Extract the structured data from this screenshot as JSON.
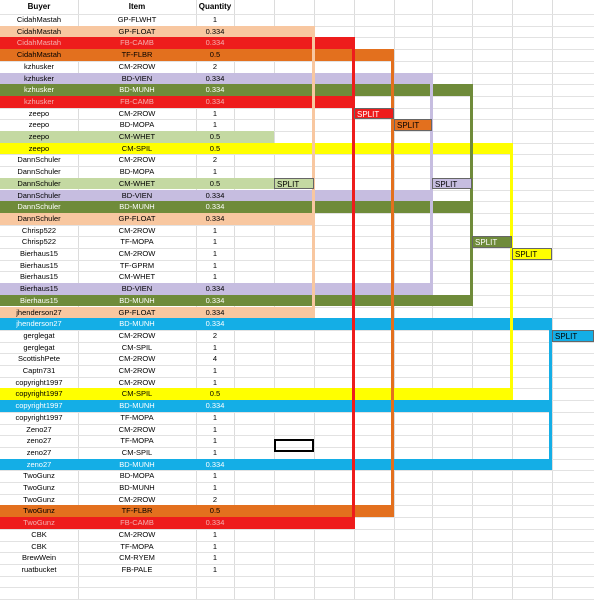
{
  "columns": {
    "buyer": "Buyer",
    "item": "Item",
    "quantity": "Quantity"
  },
  "colors": {
    "peach": "#f8c7a0",
    "red": "#ee1c1c",
    "orange": "#e3701e",
    "lavender": "#c6bde0",
    "olive": "#6f8b3a",
    "lightgreen": "#c4d9a2",
    "yellow": "#ffff00",
    "blue": "#14aee6"
  },
  "rows": [
    {
      "buyer": "CidahMastah",
      "item": "GP-FLWHT",
      "qty": "1",
      "color": ""
    },
    {
      "buyer": "CidahMastah",
      "item": "GP-FLOAT",
      "qty": "0.334",
      "color": "peach"
    },
    {
      "buyer": "CidahMastah",
      "item": "FB-CAMB",
      "qty": "0.334",
      "color": "red"
    },
    {
      "buyer": "CidahMastah",
      "item": "TF-FLBR",
      "qty": "0.5",
      "color": "orange"
    },
    {
      "buyer": "kzhusker",
      "item": "CM-2ROW",
      "qty": "2",
      "color": ""
    },
    {
      "buyer": "kzhusker",
      "item": "BD-VIEN",
      "qty": "0.334",
      "color": "lavender"
    },
    {
      "buyer": "kzhusker",
      "item": "BD-MUNH",
      "qty": "0.334",
      "color": "olive"
    },
    {
      "buyer": "kzhusker",
      "item": "FB-CAMB",
      "qty": "0.334",
      "color": "red"
    },
    {
      "buyer": "zeepo",
      "item": "CM-2ROW",
      "qty": "1",
      "color": ""
    },
    {
      "buyer": "zeepo",
      "item": "BD-MOPA",
      "qty": "1",
      "color": ""
    },
    {
      "buyer": "zeepo",
      "item": "CM-WHET",
      "qty": "0.5",
      "color": "lightgreen"
    },
    {
      "buyer": "zeepo",
      "item": "CM-SPIL",
      "qty": "0.5",
      "color": "yellow"
    },
    {
      "buyer": "DannSchuler",
      "item": "CM-2ROW",
      "qty": "2",
      "color": ""
    },
    {
      "buyer": "DannSchuler",
      "item": "BD-MOPA",
      "qty": "1",
      "color": ""
    },
    {
      "buyer": "DannSchuler",
      "item": "CM-WHET",
      "qty": "0.5",
      "color": "lightgreen"
    },
    {
      "buyer": "DannSchuler",
      "item": "BD-VIEN",
      "qty": "0.334",
      "color": "lavender"
    },
    {
      "buyer": "DannSchuler",
      "item": "BD-MUNH",
      "qty": "0.334",
      "color": "olive"
    },
    {
      "buyer": "DannSchuler",
      "item": "GP-FLOAT",
      "qty": "0.334",
      "color": "peach"
    },
    {
      "buyer": "Chrisp522",
      "item": "CM-2ROW",
      "qty": "1",
      "color": ""
    },
    {
      "buyer": "Chrisp522",
      "item": "TF-MOPA",
      "qty": "1",
      "color": ""
    },
    {
      "buyer": "Bierhaus15",
      "item": "CM-2ROW",
      "qty": "1",
      "color": ""
    },
    {
      "buyer": "Bierhaus15",
      "item": "TF-GPRM",
      "qty": "1",
      "color": ""
    },
    {
      "buyer": "Bierhaus15",
      "item": "CM-WHET",
      "qty": "1",
      "color": ""
    },
    {
      "buyer": "Bierhaus15",
      "item": "BD-VIEN",
      "qty": "0.334",
      "color": "lavender"
    },
    {
      "buyer": "Bierhaus15",
      "item": "BD-MUNH",
      "qty": "0.334",
      "color": "olive"
    },
    {
      "buyer": "jhenderson27",
      "item": "GP-FLOAT",
      "qty": "0.334",
      "color": "peach"
    },
    {
      "buyer": "jhenderson27",
      "item": "BD-MUNH",
      "qty": "0.334",
      "color": "blue"
    },
    {
      "buyer": "gerglegat",
      "item": "CM-2ROW",
      "qty": "2",
      "color": ""
    },
    {
      "buyer": "gerglegat",
      "item": "CM-SPIL",
      "qty": "1",
      "color": ""
    },
    {
      "buyer": "ScottishPete",
      "item": "CM-2ROW",
      "qty": "4",
      "color": ""
    },
    {
      "buyer": "Captn731",
      "item": "CM-2ROW",
      "qty": "1",
      "color": ""
    },
    {
      "buyer": "copyright1997",
      "item": "CM-2ROW",
      "qty": "1",
      "color": ""
    },
    {
      "buyer": "copyright1997",
      "item": "CM-SPIL",
      "qty": "0.5",
      "color": "yellow"
    },
    {
      "buyer": "copyright1997",
      "item": "BD-MUNH",
      "qty": "0.334",
      "color": "blue"
    },
    {
      "buyer": "copyright1997",
      "item": "TF-MOPA",
      "qty": "1",
      "color": ""
    },
    {
      "buyer": "Zeno27",
      "item": "CM-2ROW",
      "qty": "1",
      "color": ""
    },
    {
      "buyer": "zeno27",
      "item": "TF-MOPA",
      "qty": "1",
      "color": ""
    },
    {
      "buyer": "zeno27",
      "item": "CM-SPIL",
      "qty": "1",
      "color": ""
    },
    {
      "buyer": "zeno27",
      "item": "BD-MUNH",
      "qty": "0.334",
      "color": "blue"
    },
    {
      "buyer": "TwoGunz",
      "item": "BD-MOPA",
      "qty": "1",
      "color": ""
    },
    {
      "buyer": "TwoGunz",
      "item": "BD-MUNH",
      "qty": "1",
      "color": ""
    },
    {
      "buyer": "TwoGunz",
      "item": "CM-2ROW",
      "qty": "2",
      "color": ""
    },
    {
      "buyer": "TwoGunz",
      "item": "TF-FLBR",
      "qty": "0.5",
      "color": "orange"
    },
    {
      "buyer": "TwoGunz",
      "item": "FB-CAMB",
      "qty": "0.334",
      "color": "red"
    },
    {
      "buyer": "CBK",
      "item": "CM-2ROW",
      "qty": "1",
      "color": ""
    },
    {
      "buyer": "CBK",
      "item": "TF-MOPA",
      "qty": "1",
      "color": ""
    },
    {
      "buyer": "BrewWein",
      "item": "CM-RYEM",
      "qty": "1",
      "color": ""
    },
    {
      "buyer": "ruatbucket",
      "item": "FB-PALE",
      "qty": "1",
      "color": ""
    }
  ],
  "splits": [
    {
      "label": "SPLIT",
      "color": "lightgreen"
    },
    {
      "label": "SPLIT",
      "color": "red"
    },
    {
      "label": "SPLIT",
      "color": "orange"
    },
    {
      "label": "SPLIT",
      "color": "lavender"
    },
    {
      "label": "SPLIT",
      "color": "olive"
    },
    {
      "label": "SPLIT",
      "color": "yellow"
    },
    {
      "label": "SPLIT",
      "color": "blue"
    }
  ]
}
